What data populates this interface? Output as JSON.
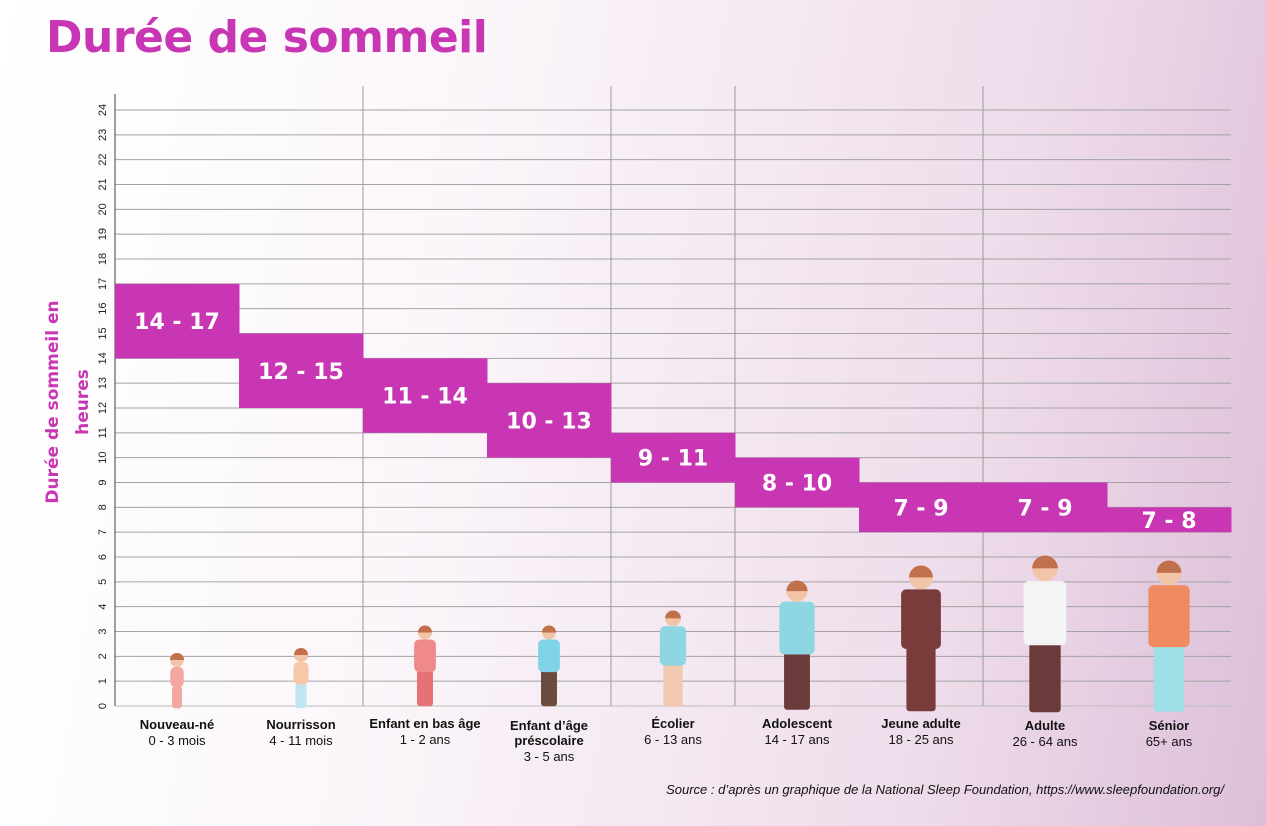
{
  "title": "Durée de sommeil",
  "source": "Source : d’après un graphique de la National Sleep Foundation, https://www.sleepfoundation.org/",
  "colors": {
    "accent": "#c936b4",
    "bar_text": "#ffffff",
    "grid": "#9a9a9a"
  },
  "chart_data": {
    "type": "bar",
    "title": "Durée de sommeil",
    "ylabel": "Durée de sommeil en heures",
    "xlabel": "",
    "ylim": [
      0,
      24
    ],
    "yticks": [
      "0",
      "1",
      "2",
      "3",
      "4",
      "5",
      "6",
      "7",
      "8",
      "9",
      "10",
      "11",
      "12",
      "13",
      "14",
      "15",
      "16",
      "17",
      "18",
      "19",
      "20",
      "21",
      "22",
      "23",
      "24"
    ],
    "grid": true,
    "categories": [
      {
        "name": "Nouveau-né",
        "age": "0 - 3 mois",
        "min": 14,
        "max": 17,
        "label": "14 - 17",
        "icon": "newborn-icon"
      },
      {
        "name": "Nourrisson",
        "age": "4 - 11 mois",
        "min": 12,
        "max": 15,
        "label": "12 - 15",
        "icon": "infant-icon"
      },
      {
        "name": "Enfant en bas âge",
        "age": "1 - 2 ans",
        "min": 11,
        "max": 14,
        "label": "11 - 14",
        "icon": "toddler-icon"
      },
      {
        "name": "Enfant d’âge préscolaire",
        "age": "3 - 5 ans",
        "min": 10,
        "max": 13,
        "label": "10 - 13",
        "icon": "preschooler-icon"
      },
      {
        "name": "Écolier",
        "age": "6 - 13 ans",
        "min": 9,
        "max": 11,
        "label": "9 - 11",
        "icon": "schoolchild-icon"
      },
      {
        "name": "Adolescent",
        "age": "14 - 17 ans",
        "min": 8,
        "max": 10,
        "label": "8 - 10",
        "icon": "teenager-icon"
      },
      {
        "name": "Jeune adulte",
        "age": "18 - 25 ans",
        "min": 7,
        "max": 9,
        "label": "7 - 9",
        "icon": "young-adult-icon"
      },
      {
        "name": "Adulte",
        "age": "26 - 64 ans",
        "min": 7,
        "max": 9,
        "label": "7 - 9",
        "icon": "adult-icon"
      },
      {
        "name": "Sénior",
        "age": "65+ ans",
        "min": 7,
        "max": 8,
        "label": "7 - 8",
        "icon": "senior-icon"
      }
    ]
  }
}
